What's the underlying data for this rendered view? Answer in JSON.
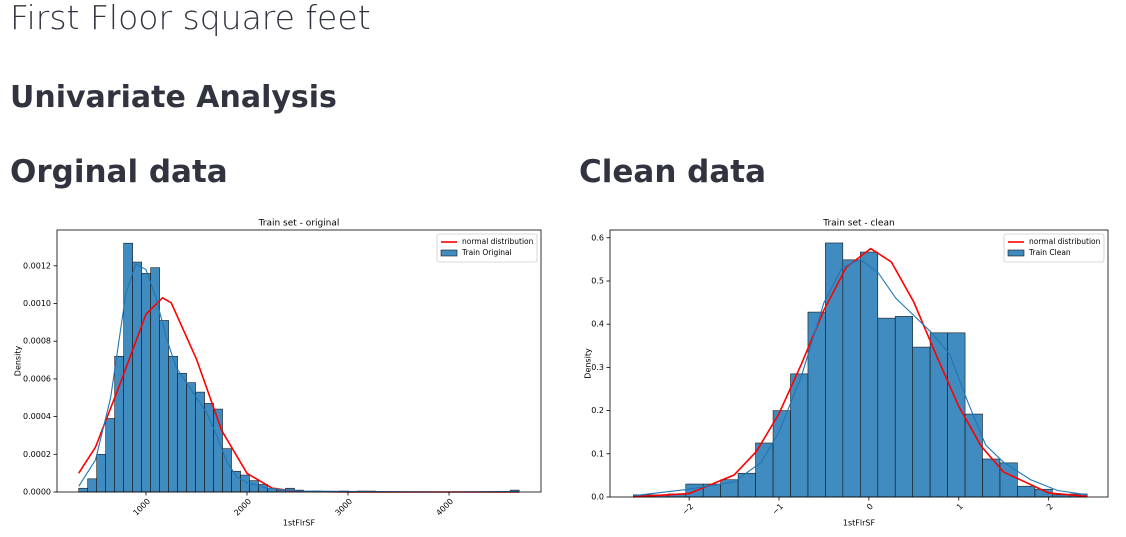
{
  "header": {
    "title": "First Floor square feet",
    "subheader": "Univariate Analysis"
  },
  "columns": [
    "Orginal data",
    "Clean data"
  ],
  "chart_data": [
    {
      "type": "histogram",
      "title": "Train set - original",
      "x_label": "1stFlrSF",
      "y_label": "Density",
      "name": "Train Original",
      "color": "#1f77b4",
      "legend": "upper right",
      "bins": [
        334,
        423,
        512,
        601,
        690,
        779,
        868,
        957,
        1046,
        1135,
        1224,
        1313,
        1402,
        1491,
        1580,
        1669,
        1758,
        1847,
        1936,
        2025,
        2114,
        2203,
        2292,
        2381,
        2470,
        2559,
        2648,
        2737,
        2826,
        2915,
        3004,
        3093,
        3182,
        3271,
        3360,
        3449,
        3538,
        3627,
        3716,
        3805,
        3894,
        3983,
        4072,
        4161,
        4250,
        4339,
        4428,
        4517,
        4606,
        4695
      ],
      "values": [
        2e-05,
        7e-05,
        0.0002,
        0.00039,
        0.00072,
        0.00132,
        0.00122,
        0.00116,
        0.00119,
        0.00091,
        0.00072,
        0.00063,
        0.00058,
        0.00053,
        0.00047,
        0.00044,
        0.00023,
        0.00011,
        9e-05,
        6e-05,
        4e-05,
        2e-05,
        1e-05,
        2e-05,
        1e-05,
        0,
        5e-06,
        0,
        0,
        5e-06,
        0,
        5e-06,
        5e-06,
        0,
        0,
        0,
        0,
        0,
        0,
        0,
        0,
        0,
        0,
        0,
        0,
        0,
        0,
        0,
        1e-05
      ],
      "lines": [
        {
          "name": "normal distribution",
          "color": "#ff0000",
          "x": [
            334,
            500,
            750,
            1000,
            1163,
            1250,
            1500,
            1750,
            2000,
            2250,
            2500,
            3000,
            4692
          ],
          "values": [
            0.0001,
            0.000238,
            0.000583,
            0.000943,
            0.00103,
            0.001004,
            0.000705,
            0.000326,
            9.93e-05,
            2e-05,
            2.6e-06,
            0,
            0
          ]
        },
        {
          "color": "#1f77b4",
          "x": [
            334,
            500,
            650,
            800,
            900,
            1000,
            1100,
            1200,
            1300,
            1400,
            1500,
            1600,
            1700,
            1800,
            1900,
            2000,
            2200,
            2500,
            3000,
            4000,
            4692
          ],
          "values": [
            3e-05,
            0.00017,
            0.0005,
            0.00105,
            0.00121,
            0.00118,
            0.00103,
            0.00082,
            0.00066,
            0.00058,
            0.0005,
            0.00042,
            0.0003,
            0.00016,
            8e-05,
            5e-05,
            2e-05,
            5e-06,
            3e-06,
            0,
            3e-06
          ]
        }
      ],
      "xlim": [
        119,
        4911
      ],
      "xticks": [
        1000,
        2000,
        3000,
        4000
      ],
      "ylim": [
        0,
        0.00139
      ],
      "yticks": [
        {
          "value": 0,
          "label": "0.0000"
        },
        {
          "value": 0.0002,
          "label": "0.0002"
        },
        {
          "value": 0.0004,
          "label": "0.0004"
        },
        {
          "value": 0.0006,
          "label": "0.0006"
        },
        {
          "value": 0.0008,
          "label": "0.0008"
        },
        {
          "value": 0.001,
          "label": "0.0010"
        },
        {
          "value": 0.0012,
          "label": "0.0012"
        }
      ]
    },
    {
      "type": "histogram",
      "title": "Train set - clean",
      "x_label": "1stFlrSF",
      "y_label": "Density",
      "name": "Train Clean",
      "color": "#1f77b4",
      "legend": "upper right",
      "bins": [
        -2.62,
        -2.426,
        -2.232,
        -2.037,
        -1.843,
        -1.649,
        -1.455,
        -1.261,
        -1.066,
        -0.872,
        -0.678,
        -0.484,
        -0.29,
        -0.095,
        0.099,
        0.293,
        0.487,
        0.681,
        0.876,
        1.07,
        1.264,
        1.458,
        1.652,
        1.847,
        2.041,
        2.235,
        2.429
      ],
      "values": [
        0.005,
        0.005,
        0.007,
        0.03,
        0.03,
        0.04,
        0.055,
        0.125,
        0.2,
        0.285,
        0.428,
        0.588,
        0.549,
        0.567,
        0.414,
        0.418,
        0.347,
        0.38,
        0.38,
        0.192,
        0.088,
        0.079,
        0.025,
        0.018,
        0.005,
        0.007
      ],
      "lines": [
        {
          "name": "normal distribution",
          "color": "#ff0000",
          "x": [
            -2.62,
            -2,
            -1.5,
            -1.25,
            -1,
            -0.75,
            -0.5,
            -0.25,
            0.02,
            0.25,
            0.5,
            0.75,
            1,
            1.25,
            1.5,
            2,
            2.43
          ],
          "values": [
            0.0004,
            0.0079,
            0.0508,
            0.1057,
            0.193,
            0.308,
            0.433,
            0.532,
            0.575,
            0.544,
            0.451,
            0.328,
            0.2097,
            0.1174,
            0.0576,
            0.0094,
            0.0013
          ]
        },
        {
          "color": "#1f77b4",
          "x": [
            -2.62,
            -2,
            -1.5,
            -1.2,
            -1,
            -0.75,
            -0.5,
            -0.3,
            -0.1,
            0.1,
            0.3,
            0.5,
            0.7,
            0.9,
            1.1,
            1.3,
            1.5,
            1.8,
            2.1,
            2.43
          ],
          "values": [
            0.003,
            0.018,
            0.035,
            0.08,
            0.15,
            0.28,
            0.45,
            0.53,
            0.55,
            0.52,
            0.46,
            0.42,
            0.38,
            0.33,
            0.22,
            0.12,
            0.08,
            0.04,
            0.015,
            0.005
          ]
        }
      ],
      "xlim": [
        -2.88,
        2.66
      ],
      "xticks": [
        {
          "value": -2,
          "label": "−2"
        },
        {
          "value": -1,
          "label": "−1"
        },
        0,
        1,
        2
      ],
      "ylim": [
        0,
        0.618
      ],
      "yticks": [
        {
          "value": 0,
          "label": "0.0"
        },
        0.1,
        0.2,
        0.3,
        0.4,
        0.5,
        0.6
      ]
    }
  ]
}
